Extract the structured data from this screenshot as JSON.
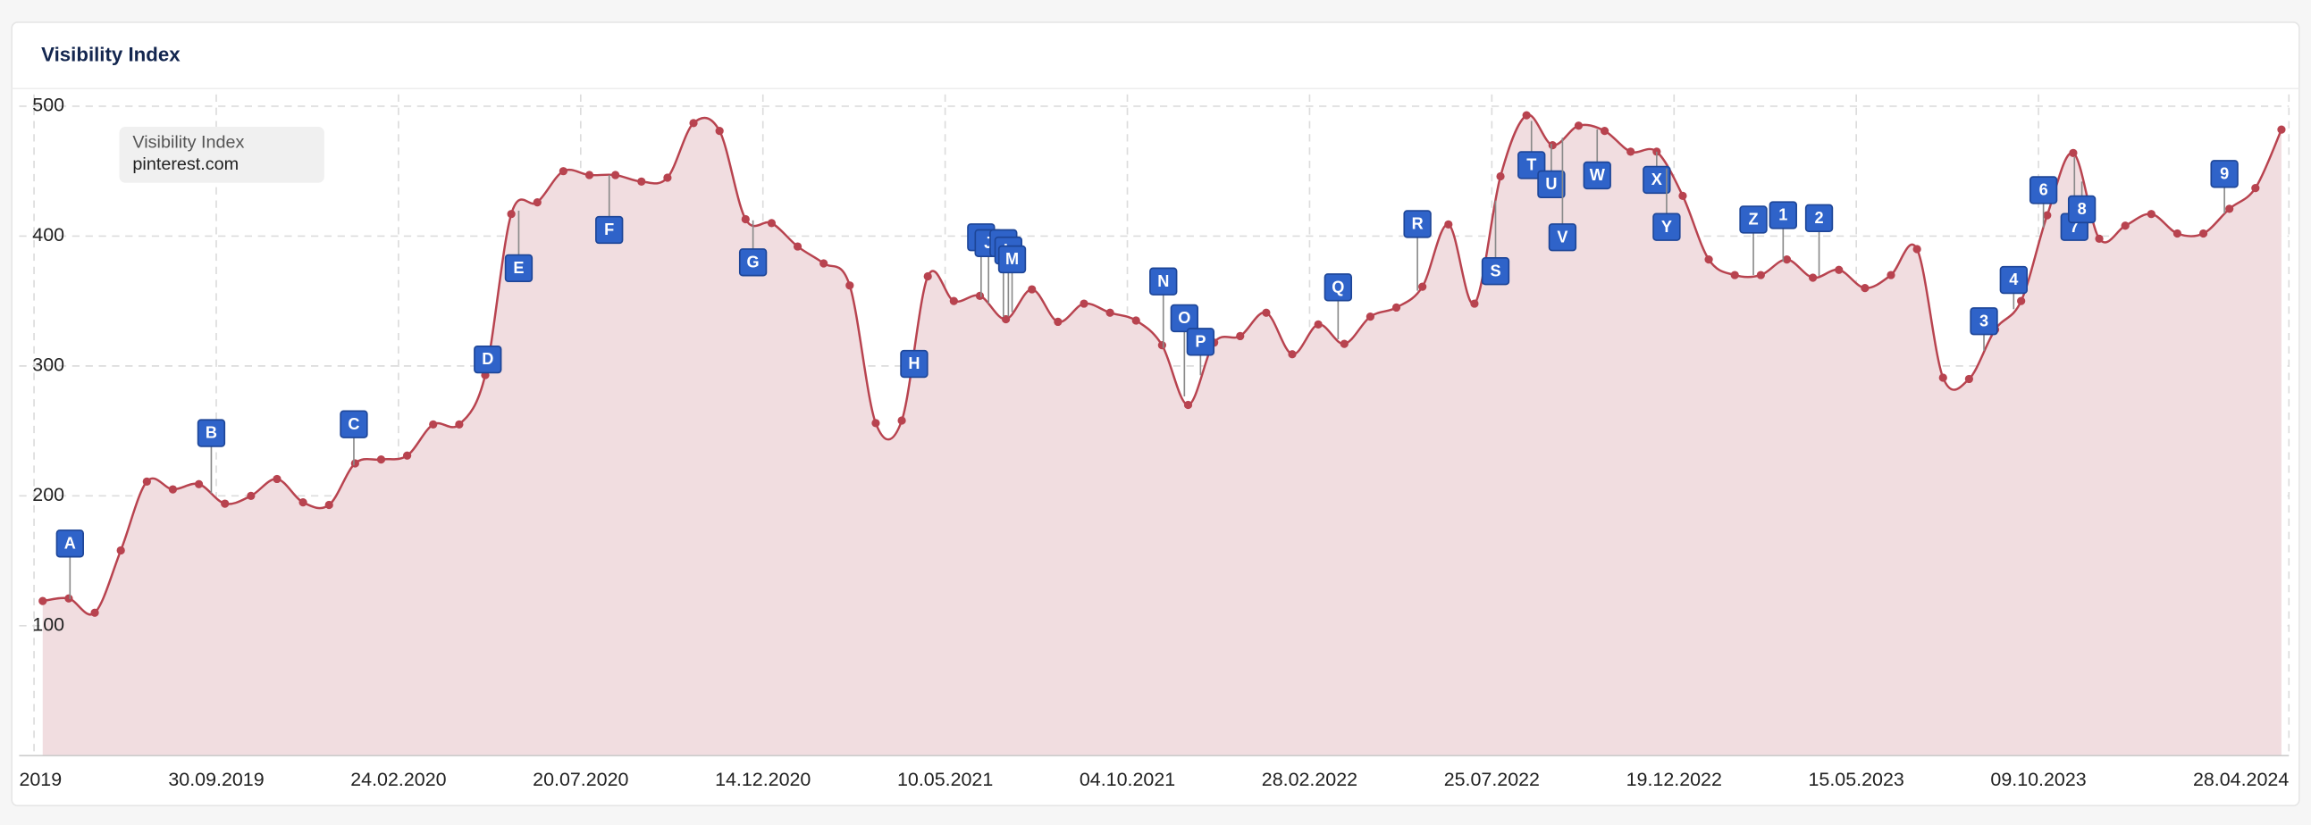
{
  "chart_data": {
    "type": "area",
    "title": "Visibility Index",
    "legend_title": "Visibility Index",
    "legend": "upper left",
    "grid": true,
    "series": [
      {
        "name": "pinterest.com",
        "color": "#b8434f",
        "fill": "#f1dde0",
        "values": [
          119,
          121,
          110,
          158,
          211,
          205,
          209,
          194,
          200,
          213,
          195,
          193,
          225,
          228,
          231,
          255,
          255,
          293,
          417,
          426,
          450,
          447,
          447,
          442,
          445,
          487,
          481,
          413,
          410,
          392,
          379,
          362,
          256,
          258,
          369,
          350,
          354,
          336,
          359,
          334,
          348,
          341,
          335,
          316,
          270,
          318,
          323,
          341,
          309,
          332,
          317,
          338,
          345,
          361,
          409,
          348,
          446,
          493,
          470,
          485,
          481,
          465,
          465,
          431,
          382,
          370,
          370,
          382,
          368,
          374,
          360,
          370,
          390,
          291,
          290,
          328,
          350,
          416,
          464,
          398,
          408,
          417,
          402,
          402,
          421,
          437,
          482
        ]
      }
    ],
    "x": [
      "2019-05-13",
      "2019-06-03",
      "2019-06-24",
      "2019-07-15",
      "2019-08-05",
      "2019-08-26",
      "2019-09-16",
      "2019-10-07",
      "2019-10-28",
      "2019-11-18",
      "2019-12-09",
      "2019-12-30",
      "2020-01-20",
      "2020-02-10",
      "2020-03-02",
      "2020-03-23",
      "2020-04-13",
      "2020-05-04",
      "2020-05-25",
      "2020-06-15",
      "2020-07-06",
      "2020-07-27",
      "2020-08-17",
      "2020-09-07",
      "2020-09-28",
      "2020-10-19",
      "2020-11-09",
      "2020-11-30",
      "2020-12-21",
      "2021-01-11",
      "2021-02-01",
      "2021-02-22",
      "2021-03-15",
      "2021-04-05",
      "2021-04-26",
      "2021-05-17",
      "2021-06-07",
      "2021-06-28",
      "2021-07-19",
      "2021-08-09",
      "2021-08-30",
      "2021-09-20",
      "2021-10-11",
      "2021-11-01",
      "2021-11-22",
      "2021-12-13",
      "2022-01-03",
      "2022-01-24",
      "2022-02-14",
      "2022-03-07",
      "2022-03-28",
      "2022-04-18",
      "2022-05-09",
      "2022-05-30",
      "2022-06-20",
      "2022-07-11",
      "2022-08-01",
      "2022-08-22",
      "2022-09-12",
      "2022-10-03",
      "2022-10-24",
      "2022-11-14",
      "2022-12-05",
      "2022-12-26",
      "2023-01-16",
      "2023-02-06",
      "2023-02-27",
      "2023-03-20",
      "2023-04-10",
      "2023-05-01",
      "2023-05-22",
      "2023-06-12",
      "2023-07-03",
      "2023-07-24",
      "2023-08-14",
      "2023-09-04",
      "2023-09-25",
      "2023-10-16",
      "2023-11-06",
      "2023-11-27",
      "2023-12-18",
      "2024-01-08",
      "2024-01-29",
      "2024-02-19",
      "2024-03-11",
      "2024-04-01",
      "2024-04-22"
    ],
    "xlim": [
      "2019-04-24",
      "2024-04-28"
    ],
    "xticks": [
      {
        "value": "2019-05-06",
        "label": "2019"
      },
      {
        "value": "2019-09-30",
        "label": "30.09.2019"
      },
      {
        "value": "2020-02-24",
        "label": "24.02.2020"
      },
      {
        "value": "2020-07-20",
        "label": "20.07.2020"
      },
      {
        "value": "2020-12-14",
        "label": "14.12.2020"
      },
      {
        "value": "2021-05-10",
        "label": "10.05.2021"
      },
      {
        "value": "2021-10-04",
        "label": "04.10.2021"
      },
      {
        "value": "2022-02-28",
        "label": "28.02.2022"
      },
      {
        "value": "2022-07-25",
        "label": "25.07.2022"
      },
      {
        "value": "2022-12-19",
        "label": "19.12.2022"
      },
      {
        "value": "2023-05-15",
        "label": "15.05.2023"
      },
      {
        "value": "2023-10-09",
        "label": "09.10.2023"
      },
      {
        "value": "2024-04-28",
        "label": "28.04.2024"
      }
    ],
    "ylim": [
      0,
      500
    ],
    "yticks": [
      100,
      200,
      300,
      400,
      500
    ],
    "annotations": [
      {
        "label": "A",
        "x": "2019-06-04"
      },
      {
        "label": "B",
        "x": "2019-09-26"
      },
      {
        "label": "C",
        "x": "2020-01-19"
      },
      {
        "label": "D",
        "x": "2020-05-06"
      },
      {
        "label": "E",
        "x": "2020-05-31"
      },
      {
        "label": "F",
        "x": "2020-08-12"
      },
      {
        "label": "G",
        "x": "2020-12-06"
      },
      {
        "label": "H",
        "x": "2021-04-15"
      },
      {
        "label": "I",
        "x": "2021-06-08"
      },
      {
        "label": "J",
        "x": "2021-06-14"
      },
      {
        "label": "K",
        "x": "2021-06-26"
      },
      {
        "label": "L",
        "x": "2021-06-30"
      },
      {
        "label": "M",
        "x": "2021-07-03"
      },
      {
        "label": "N",
        "x": "2021-11-02"
      },
      {
        "label": "O",
        "x": "2021-11-19"
      },
      {
        "label": "P",
        "x": "2021-12-02"
      },
      {
        "label": "Q",
        "x": "2022-03-23"
      },
      {
        "label": "R",
        "x": "2022-05-26"
      },
      {
        "label": "S",
        "x": "2022-07-28"
      },
      {
        "label": "T",
        "x": "2022-08-26"
      },
      {
        "label": "U",
        "x": "2022-09-11"
      },
      {
        "label": "V",
        "x": "2022-09-20"
      },
      {
        "label": "W",
        "x": "2022-10-18"
      },
      {
        "label": "X",
        "x": "2022-12-05"
      },
      {
        "label": "Y",
        "x": "2022-12-13"
      },
      {
        "label": "Z",
        "x": "2023-02-21"
      },
      {
        "label": "1",
        "x": "2023-03-17"
      },
      {
        "label": "2",
        "x": "2023-04-15"
      },
      {
        "label": "3",
        "x": "2023-08-26"
      },
      {
        "label": "4",
        "x": "2023-09-19"
      },
      {
        "label": "6",
        "x": "2023-10-13"
      },
      {
        "label": "7",
        "x": "2023-11-07"
      },
      {
        "label": "8",
        "x": "2023-11-13"
      },
      {
        "label": "9",
        "x": "2024-03-07"
      }
    ]
  }
}
